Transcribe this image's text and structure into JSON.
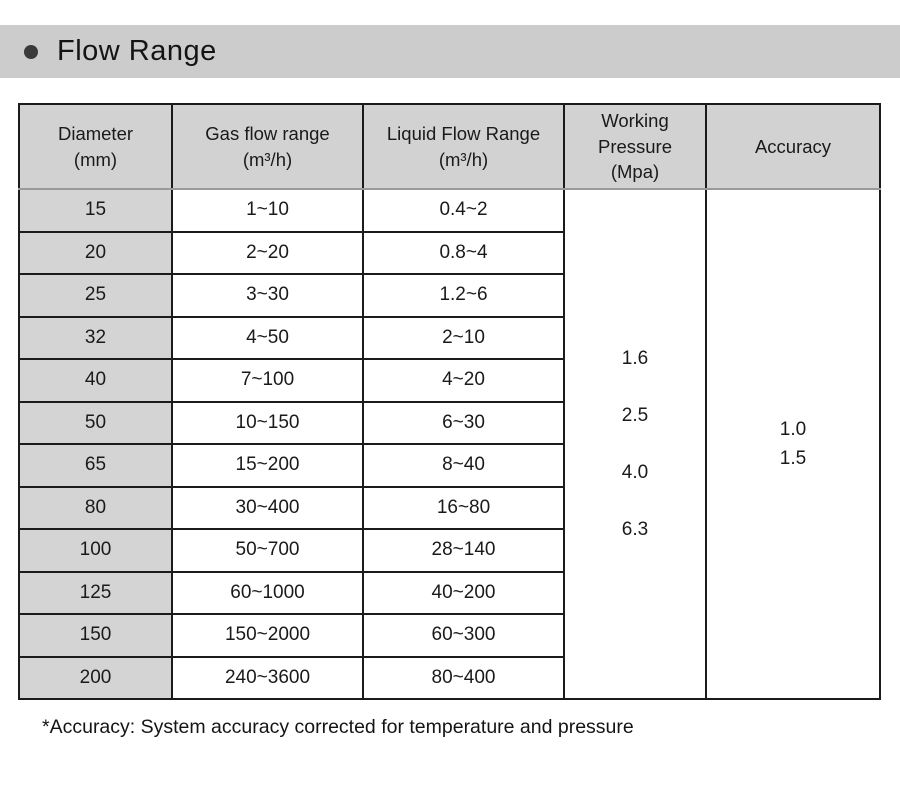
{
  "title": {
    "bullet": "●",
    "text": "Flow Range"
  },
  "table": {
    "headers": [
      "Diameter\n(mm)",
      "Gas flow range\n(m³/h)",
      "Liquid Flow Range\n(m³/h)",
      "Working\nPressure\n(Mpa)",
      "Accuracy"
    ],
    "rows": [
      [
        "15",
        "1~10",
        "0.4~2"
      ],
      [
        "20",
        "2~20",
        "0.8~4"
      ],
      [
        "25",
        "3~30",
        "1.2~6"
      ],
      [
        "32",
        "4~50",
        "2~10"
      ],
      [
        "40",
        "7~100",
        "4~20"
      ],
      [
        "50",
        "10~150",
        "6~30"
      ],
      [
        "65",
        "15~200",
        "8~40"
      ],
      [
        "80",
        "30~400",
        "16~80"
      ],
      [
        "100",
        "50~700",
        "28~140"
      ],
      [
        "125",
        "60~1000",
        "40~200"
      ],
      [
        "150",
        "150~2000",
        "60~300"
      ],
      [
        "200",
        "240~3600",
        "80~400"
      ]
    ],
    "working_pressure_values": [
      "1.6",
      "2.5",
      "4.0",
      "6.3"
    ],
    "accuracy_values": [
      "1.0",
      "1.5"
    ]
  },
  "footnote": "*Accuracy: System accuracy corrected for temperature and pressure",
  "colors": {
    "banner_bg": "#cccccc",
    "header_bg": "#d2d2d2",
    "diameter_col_bg": "#d4d4d4",
    "border_color": "#1b1b1b",
    "bullet_color": "#3a3a3a"
  }
}
